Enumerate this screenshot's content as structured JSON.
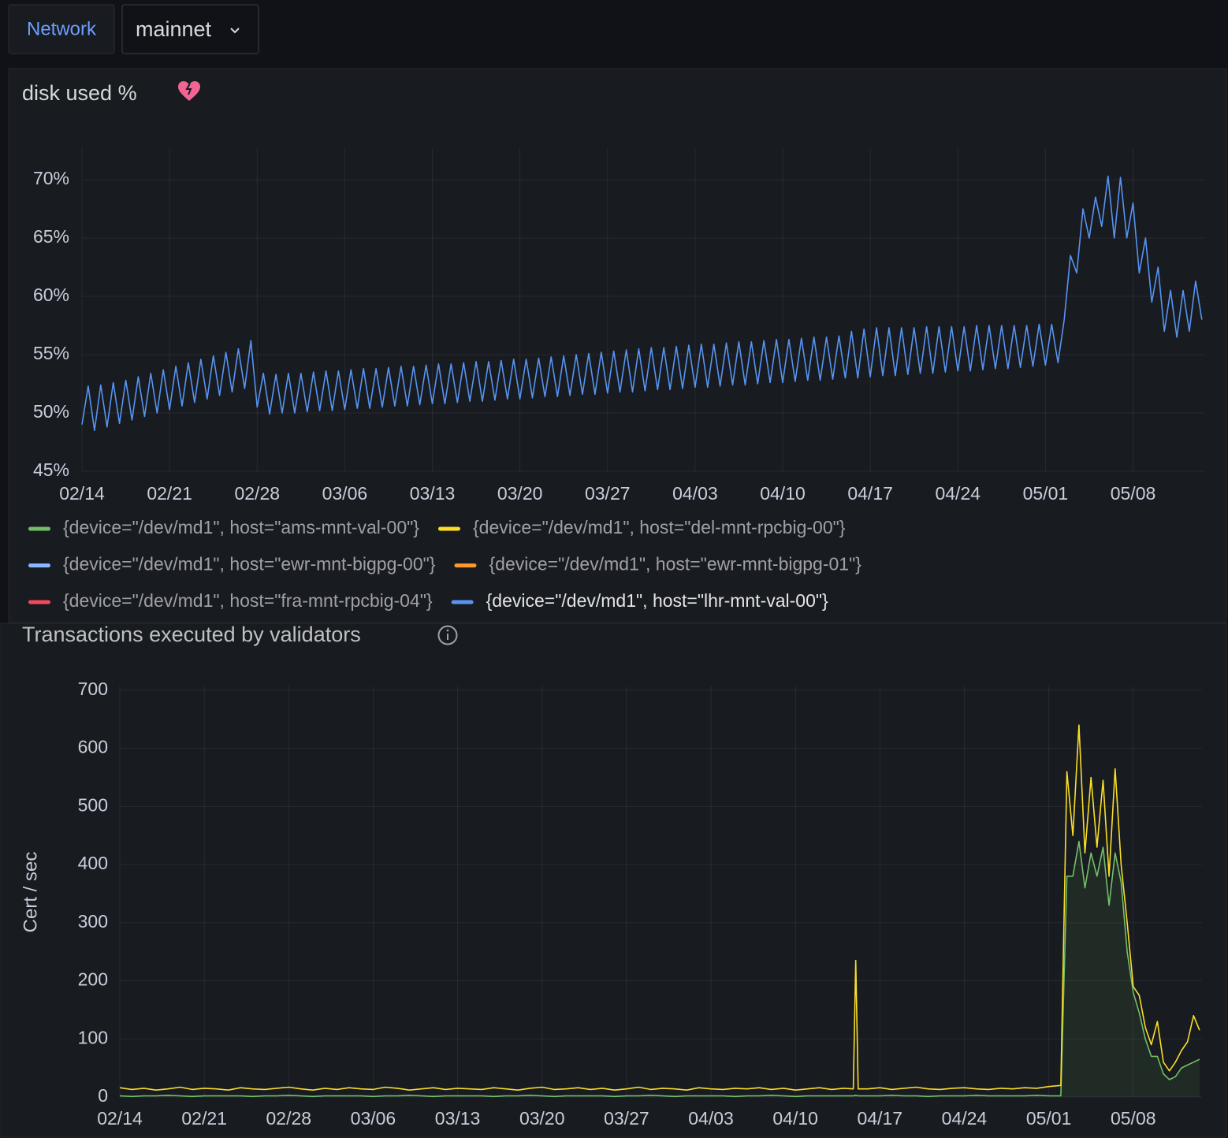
{
  "toolbar": {
    "label": "Network",
    "dropdown": "mainnet"
  },
  "chart_data": [
    {
      "type": "line",
      "title": "disk used %",
      "legend": "bottom",
      "grid": true,
      "x": [
        0,
        0.5,
        1,
        1.5,
        2,
        2.5,
        3,
        3.5,
        4,
        4.5,
        5,
        5.5,
        6,
        6.5,
        7,
        7.5,
        8,
        8.5,
        9,
        9.5,
        10,
        10.5,
        11,
        11.5,
        12,
        12.5,
        13,
        13.5,
        14,
        14.5,
        15,
        15.5,
        16,
        16.5,
        17,
        17.5,
        18,
        18.5,
        19,
        19.5,
        20,
        20.5,
        21,
        21.5,
        22,
        22.5,
        23,
        23.5,
        24,
        24.5,
        25,
        25.5,
        26,
        26.5,
        27,
        27.5,
        28,
        28.5,
        29,
        29.5,
        30,
        30.5,
        31,
        31.5,
        32,
        32.5,
        33,
        33.5,
        34,
        34.5,
        35,
        35.5,
        36,
        36.5,
        37,
        37.5,
        38,
        38.5,
        39,
        39.5,
        40,
        40.5,
        41,
        41.5,
        42,
        42.5,
        43,
        43.5,
        44,
        44.5,
        45,
        45.5,
        46,
        46.5,
        47,
        47.5,
        48,
        48.5,
        49,
        49.5,
        50,
        50.5,
        51,
        51.5,
        52,
        52.5,
        53,
        53.5,
        54,
        54.5,
        55,
        55.5,
        56,
        56.5,
        57,
        57.5,
        58,
        58.5,
        59,
        59.5,
        60,
        60.5,
        61,
        61.5,
        62,
        62.5,
        63,
        63.5,
        64,
        64.5,
        65,
        65.5,
        66,
        66.5,
        67,
        67.5,
        68,
        68.5,
        69,
        69.5,
        70,
        70.5,
        71,
        71.5,
        72,
        72.5,
        73,
        73.5,
        74,
        74.5,
        75,
        75.5,
        76,
        76.5,
        77,
        77.5,
        78,
        78.5,
        79,
        79.5,
        80,
        80.5,
        81,
        81.5,
        82,
        82.5,
        83,
        83.5,
        84,
        84.5,
        85,
        85.5,
        86,
        86.5,
        87,
        87.5,
        88,
        88.5,
        89,
        89.5
      ],
      "xlim": [
        0,
        89.7
      ],
      "xticks": [
        {
          "value": 0,
          "label": "02/14"
        },
        {
          "value": 7,
          "label": "02/21"
        },
        {
          "value": 14,
          "label": "02/28"
        },
        {
          "value": 21,
          "label": "03/06"
        },
        {
          "value": 28,
          "label": "03/13"
        },
        {
          "value": 35,
          "label": "03/20"
        },
        {
          "value": 42,
          "label": "03/27"
        },
        {
          "value": 49,
          "label": "04/03"
        },
        {
          "value": 56,
          "label": "04/10"
        },
        {
          "value": 63,
          "label": "04/17"
        },
        {
          "value": 70,
          "label": "04/24"
        },
        {
          "value": 77,
          "label": "05/01"
        },
        {
          "value": 84,
          "label": "05/08"
        }
      ],
      "ylim": [
        45,
        72.7
      ],
      "yticks": [
        {
          "value": 45,
          "label": "45%"
        },
        {
          "value": 50,
          "label": "50%"
        },
        {
          "value": 55,
          "label": "55%"
        },
        {
          "value": 60,
          "label": "60%"
        },
        {
          "value": 65,
          "label": "65%"
        },
        {
          "value": 70,
          "label": "70%"
        }
      ],
      "series": [
        {
          "name": "{device=\"/dev/md1\", host=\"ams-mnt-val-00\"}",
          "color": "#73bf69",
          "hidden": true
        },
        {
          "name": "{device=\"/dev/md1\", host=\"del-mnt-rpcbig-00\"}",
          "color": "#fade2a",
          "hidden": true
        },
        {
          "name": "{device=\"/dev/md1\", host=\"ewr-mnt-bigpg-00\"}",
          "color": "#8ab8ff",
          "hidden": true
        },
        {
          "name": "{device=\"/dev/md1\", host=\"ewr-mnt-bigpg-01\"}",
          "color": "#ff9830",
          "hidden": true
        },
        {
          "name": "{device=\"/dev/md1\", host=\"fra-mnt-rpcbig-04\"}",
          "color": "#f2495c",
          "hidden": true
        },
        {
          "name": "{device=\"/dev/md1\", host=\"lhr-mnt-val-00\"}",
          "color": "#5794f2",
          "values": [
            49.0,
            52.3,
            48.5,
            52.4,
            48.8,
            52.6,
            49.1,
            52.8,
            49.4,
            53.1,
            49.7,
            53.4,
            50.0,
            53.7,
            50.3,
            54.0,
            50.6,
            54.3,
            50.9,
            54.6,
            51.2,
            54.9,
            51.5,
            55.2,
            51.8,
            55.5,
            52.1,
            56.2,
            50.5,
            53.4,
            49.9,
            53.3,
            50.0,
            53.4,
            50.0,
            53.4,
            50.1,
            53.5,
            50.2,
            53.6,
            50.2,
            53.6,
            50.3,
            53.7,
            50.4,
            53.8,
            50.4,
            53.8,
            50.5,
            53.9,
            50.6,
            54.0,
            50.6,
            54.0,
            50.7,
            54.1,
            50.8,
            54.2,
            50.8,
            54.2,
            50.9,
            54.3,
            51.0,
            54.4,
            51.0,
            54.4,
            51.1,
            54.5,
            51.2,
            54.6,
            51.2,
            54.6,
            51.3,
            54.7,
            51.4,
            54.8,
            51.4,
            54.9,
            51.5,
            55.0,
            51.6,
            55.1,
            51.6,
            55.2,
            51.7,
            55.3,
            51.8,
            55.4,
            51.8,
            55.5,
            51.9,
            55.6,
            52.0,
            55.6,
            52.0,
            55.7,
            52.1,
            55.8,
            52.2,
            55.9,
            52.2,
            55.9,
            52.3,
            56.0,
            52.4,
            56.1,
            52.4,
            56.1,
            52.5,
            56.2,
            52.6,
            56.3,
            52.6,
            56.3,
            52.7,
            56.4,
            52.8,
            56.5,
            52.8,
            56.5,
            52.9,
            56.6,
            53.0,
            57.0,
            53.0,
            57.2,
            53.1,
            57.3,
            53.2,
            57.3,
            53.2,
            57.3,
            53.3,
            57.3,
            53.4,
            57.4,
            53.4,
            57.4,
            53.5,
            57.4,
            53.6,
            57.4,
            53.6,
            57.5,
            53.7,
            57.5,
            53.8,
            57.5,
            53.8,
            57.5,
            53.9,
            57.5,
            54.0,
            57.6,
            54.1,
            57.6,
            54.3,
            58.0,
            63.5,
            62.0,
            67.5,
            65.0,
            68.5,
            66.0,
            70.3,
            65.0,
            70.2,
            65.0,
            68.0,
            62.0,
            65.0,
            59.5,
            62.5,
            57.0,
            60.5,
            56.5,
            60.5,
            57.0,
            61.3,
            58.0
          ]
        }
      ]
    },
    {
      "type": "line",
      "title": "Transactions executed by validators",
      "ylabel": "Cert / sec",
      "grid": true,
      "x": [
        0,
        1,
        2,
        3,
        4,
        5,
        6,
        7,
        8,
        9,
        10,
        11,
        12,
        13,
        14,
        15,
        16,
        17,
        18,
        19,
        20,
        21,
        22,
        23,
        24,
        25,
        26,
        27,
        28,
        29,
        30,
        31,
        32,
        33,
        34,
        35,
        36,
        37,
        38,
        39,
        40,
        41,
        42,
        43,
        44,
        45,
        46,
        47,
        48,
        49,
        50,
        51,
        52,
        53,
        54,
        55,
        56,
        57,
        58,
        59,
        60,
        60.8,
        61,
        61.2,
        62,
        63,
        64,
        65,
        66,
        67,
        68,
        69,
        70,
        71,
        72,
        73,
        74,
        75,
        76,
        77,
        78,
        78.5,
        79,
        79.5,
        80,
        80.5,
        81,
        81.5,
        82,
        82.5,
        83,
        83.5,
        84,
        84.5,
        85,
        85.5,
        86,
        86.5,
        87,
        87.5,
        88,
        88.5,
        89,
        89.5
      ],
      "xlim": [
        0,
        89.7
      ],
      "xticks": [
        {
          "value": 0,
          "label": "02/14"
        },
        {
          "value": 7,
          "label": "02/21"
        },
        {
          "value": 14,
          "label": "02/28"
        },
        {
          "value": 21,
          "label": "03/06"
        },
        {
          "value": 28,
          "label": "03/13"
        },
        {
          "value": 35,
          "label": "03/20"
        },
        {
          "value": 42,
          "label": "03/27"
        },
        {
          "value": 49,
          "label": "04/03"
        },
        {
          "value": 56,
          "label": "04/10"
        },
        {
          "value": 63,
          "label": "04/17"
        },
        {
          "value": 70,
          "label": "04/24"
        },
        {
          "value": 77,
          "label": "05/01"
        },
        {
          "value": 84,
          "label": "05/08"
        }
      ],
      "ylim": [
        0,
        708
      ],
      "yticks": [
        0,
        100,
        200,
        300,
        400,
        500,
        600,
        700
      ],
      "series": [
        {
          "color": "#73bf69",
          "area": true,
          "values": [
            2,
            1,
            2,
            2,
            3,
            2,
            1,
            2,
            2,
            2,
            2,
            1,
            2,
            2,
            3,
            2,
            1,
            2,
            2,
            2,
            2,
            1,
            2,
            2,
            3,
            2,
            1,
            2,
            2,
            2,
            2,
            1,
            2,
            2,
            3,
            2,
            1,
            2,
            2,
            2,
            2,
            1,
            2,
            2,
            3,
            2,
            1,
            2,
            2,
            2,
            2,
            1,
            2,
            2,
            3,
            2,
            1,
            2,
            2,
            2,
            2,
            2,
            3,
            2,
            2,
            2,
            3,
            2,
            2,
            1,
            2,
            2,
            2,
            3,
            2,
            2,
            2,
            2,
            3,
            2,
            2,
            380,
            380,
            440,
            360,
            420,
            380,
            430,
            330,
            420,
            370,
            250,
            180,
            145,
            100,
            70,
            70,
            40,
            30,
            35,
            50,
            55,
            60,
            65
          ]
        },
        {
          "color": "#fade2a",
          "values": [
            16,
            13,
            15,
            12,
            14,
            17,
            13,
            15,
            14,
            12,
            16,
            14,
            13,
            15,
            17,
            14,
            12,
            15,
            13,
            16,
            14,
            13,
            17,
            15,
            12,
            14,
            16,
            13,
            15,
            14,
            13,
            16,
            14,
            12,
            15,
            17,
            13,
            14,
            16,
            13,
            15,
            12,
            14,
            17,
            13,
            15,
            14,
            12,
            16,
            14,
            13,
            15,
            14,
            16,
            13,
            15,
            12,
            14,
            16,
            13,
            15,
            14,
            235,
            14,
            14,
            16,
            13,
            15,
            17,
            14,
            13,
            15,
            16,
            14,
            13,
            15,
            14,
            16,
            15,
            18,
            20,
            560,
            450,
            640,
            420,
            550,
            430,
            545,
            380,
            565,
            400,
            300,
            190,
            175,
            120,
            90,
            130,
            60,
            45,
            60,
            80,
            95,
            140,
            115
          ]
        }
      ]
    }
  ]
}
